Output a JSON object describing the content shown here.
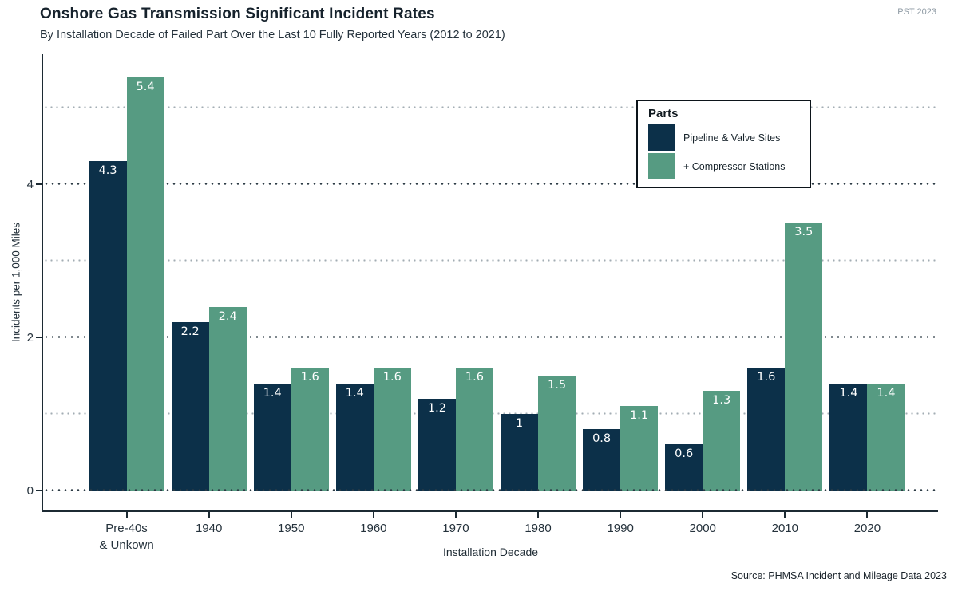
{
  "header": {
    "title": "Onshore Gas Transmission Significant Incident Rates",
    "subtitle": "By Installation Decade of Failed Part Over the Last 10 Fully Reported Years (2012 to 2021)",
    "watermark": "PST 2023"
  },
  "chart_data": {
    "type": "bar",
    "title": "Onshore Gas Transmission Significant Incident Rates",
    "subtitle": "By Installation Decade of Failed Part Over the Last 10 Fully Reported Years (2012 to 2021)",
    "categories": [
      "Pre-40s\n& Unkown",
      "1940",
      "1950",
      "1960",
      "1970",
      "1980",
      "1990",
      "2000",
      "2010",
      "2020"
    ],
    "series": [
      {
        "name": "Pipeline & Valve Sites",
        "color": "#0c3049",
        "values": [
          4.3,
          2.2,
          1.4,
          1.4,
          1.2,
          1,
          0.8,
          0.6,
          1.6,
          1.4
        ]
      },
      {
        "name": "+ Compressor Stations",
        "color": "#569b82",
        "values": [
          5.4,
          2.4,
          1.6,
          1.6,
          1.6,
          1.5,
          1.1,
          1.3,
          3.5,
          1.4
        ]
      }
    ],
    "xlabel": "Installation Decade",
    "ylabel": "Incidents per 1,000 Miles",
    "ylim": [
      0,
      5.7
    ],
    "yticks": [
      0,
      2,
      4
    ],
    "grid_major": [
      0,
      2,
      4
    ],
    "grid_minor": [
      1,
      3,
      5
    ],
    "grid": "dotted horizontal",
    "legend_title": "Parts",
    "legend_position": "inside top-right",
    "bar_value_labels": "inside top, white"
  },
  "footer": {
    "source": "Source: PHMSA Incident and Mileage Data 2023"
  }
}
